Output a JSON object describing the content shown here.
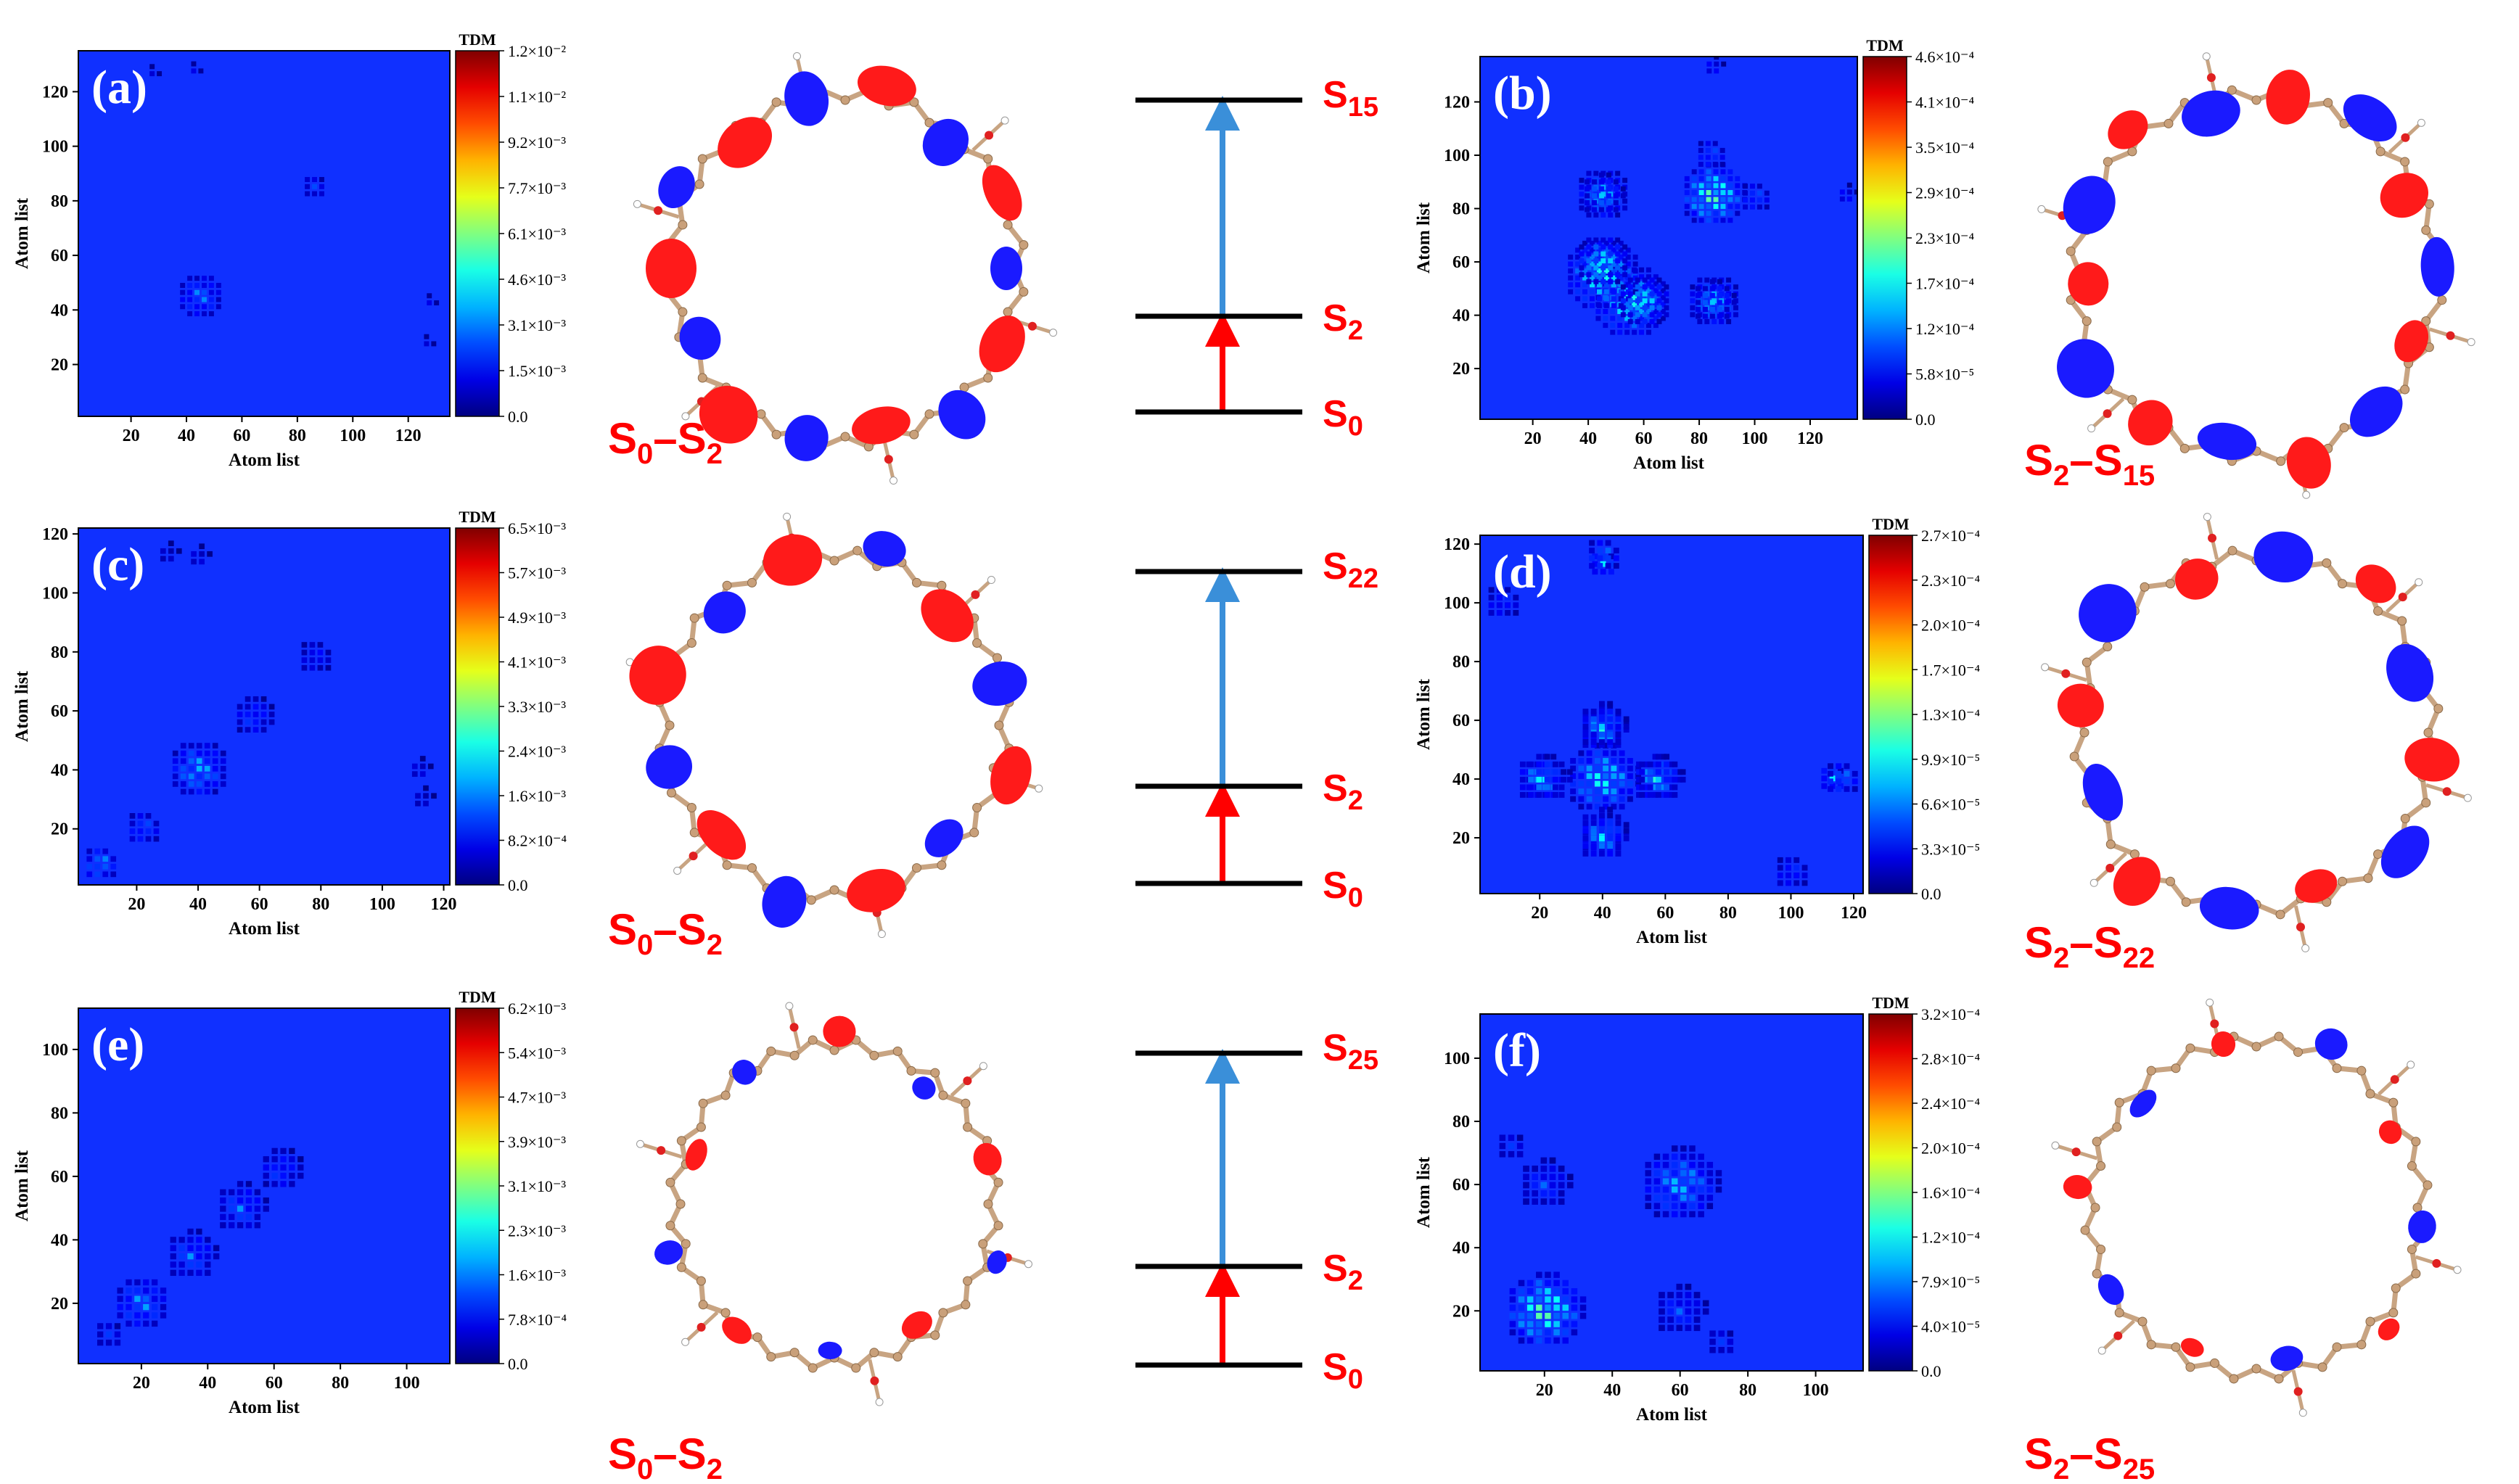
{
  "colors": {
    "heat_bg": "#1030ff",
    "level": "#000000",
    "arrow_red": "#ff0000",
    "arrow_blue": "#3a8fd9",
    "lobe_red": "#ff1a1a",
    "lobe_blue": "#1a1aff",
    "bond": "#c8a482",
    "label_red": "#ff0000"
  },
  "chart_data": [
    {
      "id": "a",
      "type": "heatmap",
      "panel_label": "(a)",
      "xlabel": "Atom list",
      "ylabel": "Atom list",
      "colorbar_title": "TDM",
      "x_ticks": [
        "20",
        "40",
        "60",
        "80",
        "100",
        "120"
      ],
      "y_ticks": [
        "20",
        "40",
        "60",
        "80",
        "100",
        "120"
      ],
      "tick_values": [
        20,
        40,
        60,
        80,
        100,
        120
      ],
      "axis_range": [
        1,
        135
      ],
      "colorbar_ticks": [
        "1.2×10⁻²",
        "1.1×10⁻²",
        "9.2×10⁻³",
        "7.7×10⁻³",
        "6.1×10⁻³",
        "4.6×10⁻³",
        "3.1×10⁻³",
        "1.5×10⁻³",
        "0.0"
      ],
      "hotspots": [
        {
          "x": 45,
          "y": 45,
          "r": 9,
          "v": 0.32
        },
        {
          "x": 86,
          "y": 85,
          "r": 5,
          "v": 0.22
        },
        {
          "x": 128,
          "y": 43,
          "r": 3,
          "v": 0.15
        },
        {
          "x": 28,
          "y": 127,
          "r": 3,
          "v": 0.12
        }
      ]
    },
    {
      "id": "b",
      "type": "heatmap",
      "panel_label": "(b)",
      "xlabel": "Atom list",
      "ylabel": "Atom list",
      "colorbar_title": "TDM",
      "x_ticks": [
        "20",
        "40",
        "60",
        "80",
        "100",
        "120"
      ],
      "y_ticks": [
        "20",
        "40",
        "60",
        "80",
        "100",
        "120"
      ],
      "tick_values": [
        20,
        40,
        60,
        80,
        100,
        120
      ],
      "axis_range": [
        1,
        137
      ],
      "colorbar_ticks": [
        "4.6×10⁻⁴",
        "4.1×10⁻⁴",
        "3.5×10⁻⁴",
        "2.9×10⁻⁴",
        "2.3×10⁻⁴",
        "1.7×10⁻⁴",
        "1.2×10⁻⁴",
        "5.8×10⁻⁵",
        "0.0"
      ],
      "hotspots": [
        {
          "x": 85,
          "y": 85,
          "r": 12,
          "v": 0.6
        },
        {
          "x": 55,
          "y": 45,
          "r": 14,
          "v": 0.5
        },
        {
          "x": 45,
          "y": 60,
          "r": 10,
          "v": 0.45
        },
        {
          "x": 85,
          "y": 45,
          "r": 10,
          "v": 0.4
        },
        {
          "x": 45,
          "y": 85,
          "r": 8,
          "v": 0.35
        },
        {
          "x": 100,
          "y": 84,
          "r": 6,
          "v": 0.3
        },
        {
          "x": 133,
          "y": 85,
          "r": 4,
          "v": 0.2
        }
      ]
    },
    {
      "id": "c",
      "type": "heatmap",
      "panel_label": "(c)",
      "xlabel": "Atom list",
      "ylabel": "Atom list",
      "colorbar_title": "TDM",
      "x_ticks": [
        "20",
        "40",
        "60",
        "80",
        "100",
        "120"
      ],
      "y_ticks": [
        "20",
        "40",
        "60",
        "80",
        "100",
        "120"
      ],
      "tick_values": [
        20,
        40,
        60,
        80,
        100,
        120
      ],
      "axis_range": [
        1,
        122
      ],
      "colorbar_ticks": [
        "6.5×10⁻³",
        "5.7×10⁻³",
        "4.9×10⁻³",
        "4.1×10⁻³",
        "3.3×10⁻³",
        "2.4×10⁻³",
        "1.6×10⁻³",
        "8.2×10⁻⁴",
        "0.0"
      ],
      "hotspots": [
        {
          "x": 40,
          "y": 40,
          "r": 10,
          "v": 0.4
        },
        {
          "x": 8,
          "y": 8,
          "r": 6,
          "v": 0.4
        },
        {
          "x": 22,
          "y": 20,
          "r": 6,
          "v": 0.3
        },
        {
          "x": 58,
          "y": 58,
          "r": 7,
          "v": 0.25
        },
        {
          "x": 78,
          "y": 78,
          "r": 6,
          "v": 0.2
        },
        {
          "x": 112,
          "y": 40,
          "r": 4,
          "v": 0.15
        },
        {
          "x": 30,
          "y": 113,
          "r": 4,
          "v": 0.12
        }
      ]
    },
    {
      "id": "d",
      "type": "heatmap",
      "panel_label": "(d)",
      "xlabel": "Atom list",
      "ylabel": "Atom list",
      "colorbar_title": "TDM",
      "x_ticks": [
        "20",
        "40",
        "60",
        "80",
        "100",
        "120"
      ],
      "y_ticks": [
        "20",
        "40",
        "60",
        "80",
        "100",
        "120"
      ],
      "tick_values": [
        20,
        40,
        60,
        80,
        100,
        120
      ],
      "axis_range": [
        1,
        123
      ],
      "colorbar_ticks": [
        "2.7×10⁻⁴",
        "2.3×10⁻⁴",
        "2.0×10⁻⁴",
        "1.7×10⁻⁴",
        "1.3×10⁻⁴",
        "9.9×10⁻⁵",
        "6.6×10⁻⁵",
        "3.3×10⁻⁵",
        "0.0"
      ],
      "hotspots": [
        {
          "x": 40,
          "y": 40,
          "r": 12,
          "v": 0.5
        },
        {
          "x": 57,
          "y": 40,
          "r": 8,
          "v": 0.45
        },
        {
          "x": 22,
          "y": 40,
          "r": 8,
          "v": 0.4
        },
        {
          "x": 40,
          "y": 20,
          "r": 8,
          "v": 0.4
        },
        {
          "x": 40,
          "y": 58,
          "r": 8,
          "v": 0.35
        },
        {
          "x": 113,
          "y": 40,
          "r": 5,
          "v": 0.4
        },
        {
          "x": 40,
          "y": 116,
          "r": 6,
          "v": 0.35
        },
        {
          "x": 6,
          "y": 98,
          "r": 4,
          "v": 0.3
        },
        {
          "x": 100,
          "y": 8,
          "r": 6,
          "v": 0.25
        }
      ]
    },
    {
      "id": "e",
      "type": "heatmap",
      "panel_label": "(e)",
      "xlabel": "Atom list",
      "ylabel": "Atom list",
      "colorbar_title": "TDM",
      "x_ticks": [
        "20",
        "40",
        "60",
        "80",
        "100"
      ],
      "y_ticks": [
        "20",
        "40",
        "60",
        "80",
        "100"
      ],
      "tick_values": [
        20,
        40,
        60,
        80,
        100
      ],
      "axis_range": [
        1,
        113
      ],
      "colorbar_ticks": [
        "6.2×10⁻³",
        "5.4×10⁻³",
        "4.7×10⁻³",
        "3.9×10⁻³",
        "3.1×10⁻³",
        "2.3×10⁻³",
        "1.6×10⁻³",
        "7.8×10⁻⁴",
        "0.0"
      ],
      "hotspots": [
        {
          "x": 20,
          "y": 20,
          "r": 9,
          "v": 0.35
        },
        {
          "x": 35,
          "y": 35,
          "r": 8,
          "v": 0.3
        },
        {
          "x": 50,
          "y": 50,
          "r": 8,
          "v": 0.3
        },
        {
          "x": 62,
          "y": 62,
          "r": 7,
          "v": 0.25
        },
        {
          "x": 10,
          "y": 10,
          "r": 5,
          "v": 0.2
        }
      ]
    },
    {
      "id": "f",
      "type": "heatmap",
      "panel_label": "(f)",
      "xlabel": "Atom list",
      "ylabel": "Atom list",
      "colorbar_title": "TDM",
      "x_ticks": [
        "20",
        "40",
        "60",
        "80",
        "100"
      ],
      "y_ticks": [
        "20",
        "40",
        "60",
        "80",
        "100"
      ],
      "tick_values": [
        20,
        40,
        60,
        80,
        100
      ],
      "axis_range": [
        1,
        114
      ],
      "colorbar_ticks": [
        "3.2×10⁻⁴",
        "2.8×10⁻⁴",
        "2.4×10⁻⁴",
        "2.0×10⁻⁴",
        "1.6×10⁻⁴",
        "1.2×10⁻⁴",
        "7.9×10⁻⁵",
        "4.0×10⁻⁵",
        "0.0"
      ],
      "hotspots": [
        {
          "x": 20,
          "y": 20,
          "r": 12,
          "v": 0.6
        },
        {
          "x": 60,
          "y": 60,
          "r": 12,
          "v": 0.4
        },
        {
          "x": 60,
          "y": 20,
          "r": 8,
          "v": 0.25
        },
        {
          "x": 20,
          "y": 60,
          "r": 8,
          "v": 0.25
        },
        {
          "x": 10,
          "y": 72,
          "r": 5,
          "v": 0.2
        }
      ]
    }
  ],
  "molecules": [
    {
      "id": "a",
      "label_base": "S",
      "label_from": "0",
      "label_to": "2",
      "lobes": 14,
      "ring": "large"
    },
    {
      "id": "b",
      "label_base": "S",
      "label_from": "2",
      "label_to": "15",
      "lobes": 14,
      "ring": "large"
    },
    {
      "id": "c",
      "label_base": "S",
      "label_from": "0",
      "label_to": "2",
      "lobes": 12,
      "ring": "medium"
    },
    {
      "id": "d",
      "label_base": "S",
      "label_from": "2",
      "label_to": "22",
      "lobes": 12,
      "ring": "medium"
    },
    {
      "id": "e",
      "label_base": "S",
      "label_from": "0",
      "label_to": "2",
      "lobes": 10,
      "ring": "small"
    },
    {
      "id": "f",
      "label_base": "S",
      "label_from": "2",
      "label_to": "25",
      "lobes": 10,
      "ring": "small"
    }
  ],
  "energy_diagrams": [
    {
      "id": "row1",
      "levels": [
        {
          "base": "S",
          "sub": "15"
        },
        {
          "base": "S",
          "sub": "2"
        },
        {
          "base": "S",
          "sub": "0"
        }
      ]
    },
    {
      "id": "row2",
      "levels": [
        {
          "base": "S",
          "sub": "22"
        },
        {
          "base": "S",
          "sub": "2"
        },
        {
          "base": "S",
          "sub": "0"
        }
      ]
    },
    {
      "id": "row3",
      "levels": [
        {
          "base": "S",
          "sub": "25"
        },
        {
          "base": "S",
          "sub": "2"
        },
        {
          "base": "S",
          "sub": "0"
        }
      ]
    }
  ]
}
